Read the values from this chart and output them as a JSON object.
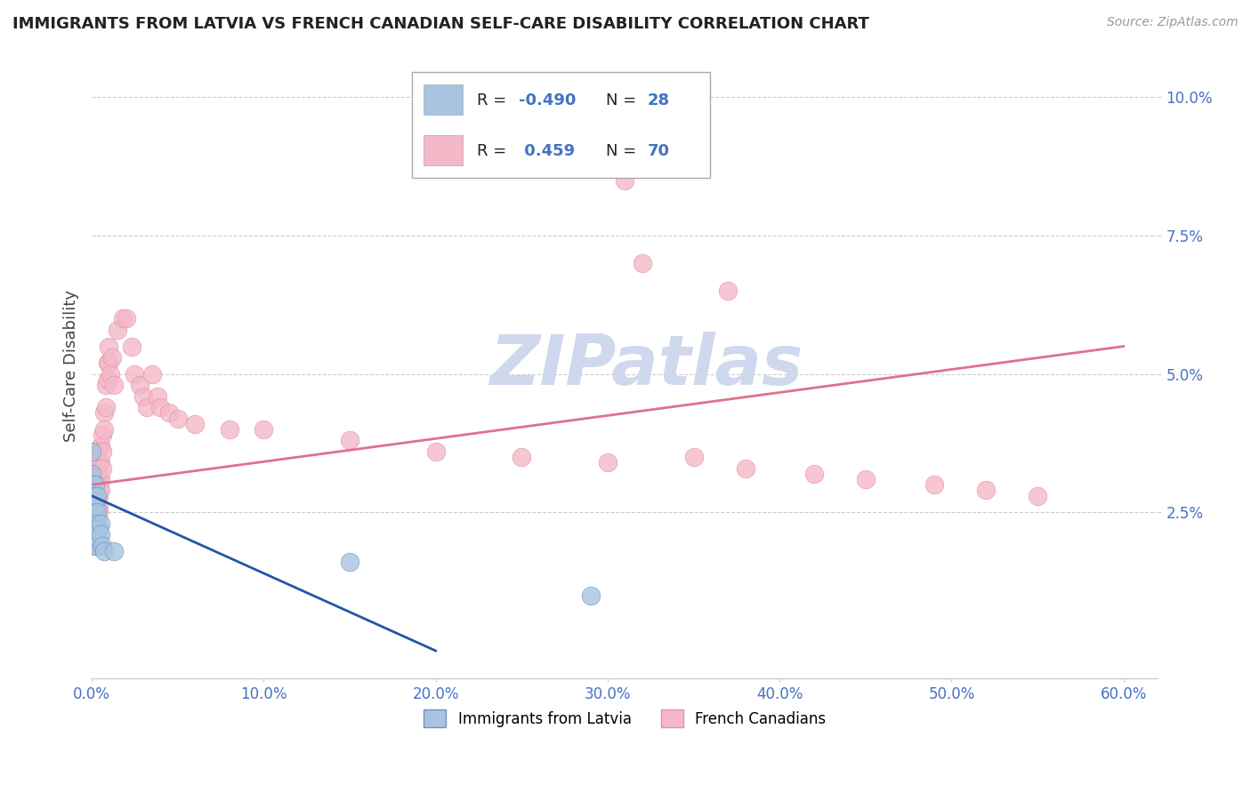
{
  "title": "IMMIGRANTS FROM LATVIA VS FRENCH CANADIAN SELF-CARE DISABILITY CORRELATION CHART",
  "source": "Source: ZipAtlas.com",
  "ylabel": "Self-Care Disability",
  "xlim": [
    0.0,
    0.62
  ],
  "ylim": [
    -0.005,
    0.108
  ],
  "yticks": [
    0.025,
    0.05,
    0.075,
    0.1
  ],
  "ytick_labels": [
    "2.5%",
    "5.0%",
    "7.5%",
    "10.0%"
  ],
  "xticks": [
    0.0,
    0.1,
    0.2,
    0.3,
    0.4,
    0.5,
    0.6
  ],
  "xtick_labels": [
    "0.0%",
    "10.0%",
    "20.0%",
    "30.0%",
    "40.0%",
    "50.0%",
    "60.0%"
  ],
  "latvia_color": "#a8c4e0",
  "latvia_edge": "#7090c0",
  "french_color": "#f4b8c8",
  "french_edge": "#e090a8",
  "trend_latvia_color": "#2255aa",
  "trend_french_color": "#e07090",
  "watermark_color": "#d0d8ee",
  "grid_color": "#cccccc",
  "axis_color": "#4472c4",
  "title_color": "#222222",
  "source_color": "#999999",
  "latvia_points": [
    [
      0.0,
      0.032
    ],
    [
      0.0,
      0.036
    ],
    [
      0.001,
      0.03
    ],
    [
      0.001,
      0.028
    ],
    [
      0.001,
      0.025
    ],
    [
      0.001,
      0.023
    ],
    [
      0.001,
      0.022
    ],
    [
      0.002,
      0.03
    ],
    [
      0.002,
      0.028
    ],
    [
      0.002,
      0.027
    ],
    [
      0.002,
      0.025
    ],
    [
      0.002,
      0.023
    ],
    [
      0.002,
      0.021
    ],
    [
      0.002,
      0.019
    ],
    [
      0.003,
      0.028
    ],
    [
      0.003,
      0.025
    ],
    [
      0.003,
      0.023
    ],
    [
      0.003,
      0.021
    ],
    [
      0.003,
      0.019
    ],
    [
      0.004,
      0.022
    ],
    [
      0.004,
      0.02
    ],
    [
      0.005,
      0.023
    ],
    [
      0.005,
      0.021
    ],
    [
      0.006,
      0.019
    ],
    [
      0.007,
      0.018
    ],
    [
      0.013,
      0.018
    ],
    [
      0.15,
      0.016
    ],
    [
      0.29,
      0.01
    ]
  ],
  "french_points": [
    [
      0.0,
      0.031
    ],
    [
      0.001,
      0.033
    ],
    [
      0.001,
      0.03
    ],
    [
      0.001,
      0.028
    ],
    [
      0.002,
      0.034
    ],
    [
      0.002,
      0.031
    ],
    [
      0.002,
      0.029
    ],
    [
      0.002,
      0.027
    ],
    [
      0.002,
      0.025
    ],
    [
      0.002,
      0.024
    ],
    [
      0.003,
      0.036
    ],
    [
      0.003,
      0.032
    ],
    [
      0.003,
      0.03
    ],
    [
      0.003,
      0.028
    ],
    [
      0.003,
      0.026
    ],
    [
      0.003,
      0.025
    ],
    [
      0.004,
      0.034
    ],
    [
      0.004,
      0.031
    ],
    [
      0.004,
      0.029
    ],
    [
      0.004,
      0.028
    ],
    [
      0.004,
      0.026
    ],
    [
      0.004,
      0.025
    ],
    [
      0.005,
      0.037
    ],
    [
      0.005,
      0.034
    ],
    [
      0.005,
      0.031
    ],
    [
      0.005,
      0.029
    ],
    [
      0.006,
      0.039
    ],
    [
      0.006,
      0.036
    ],
    [
      0.006,
      0.033
    ],
    [
      0.007,
      0.043
    ],
    [
      0.007,
      0.04
    ],
    [
      0.008,
      0.048
    ],
    [
      0.008,
      0.044
    ],
    [
      0.009,
      0.052
    ],
    [
      0.009,
      0.049
    ],
    [
      0.01,
      0.055
    ],
    [
      0.01,
      0.052
    ],
    [
      0.011,
      0.05
    ],
    [
      0.012,
      0.053
    ],
    [
      0.013,
      0.048
    ],
    [
      0.015,
      0.058
    ],
    [
      0.018,
      0.06
    ],
    [
      0.02,
      0.06
    ],
    [
      0.023,
      0.055
    ],
    [
      0.025,
      0.05
    ],
    [
      0.028,
      0.048
    ],
    [
      0.03,
      0.046
    ],
    [
      0.032,
      0.044
    ],
    [
      0.035,
      0.05
    ],
    [
      0.038,
      0.046
    ],
    [
      0.04,
      0.044
    ],
    [
      0.045,
      0.043
    ],
    [
      0.05,
      0.042
    ],
    [
      0.06,
      0.041
    ],
    [
      0.08,
      0.04
    ],
    [
      0.1,
      0.04
    ],
    [
      0.15,
      0.038
    ],
    [
      0.2,
      0.036
    ],
    [
      0.25,
      0.035
    ],
    [
      0.3,
      0.034
    ],
    [
      0.35,
      0.035
    ],
    [
      0.38,
      0.033
    ],
    [
      0.42,
      0.032
    ],
    [
      0.45,
      0.031
    ],
    [
      0.49,
      0.03
    ],
    [
      0.52,
      0.029
    ],
    [
      0.55,
      0.028
    ],
    [
      0.32,
      0.07
    ],
    [
      0.37,
      0.065
    ],
    [
      0.23,
      0.09
    ],
    [
      0.31,
      0.085
    ]
  ],
  "trend_french_x0": 0.0,
  "trend_french_y0": 0.03,
  "trend_french_x1": 0.6,
  "trend_french_y1": 0.055,
  "trend_latvia_x0": 0.0,
  "trend_latvia_y0": 0.028,
  "trend_latvia_x1": 0.2,
  "trend_latvia_y1": 0.0
}
